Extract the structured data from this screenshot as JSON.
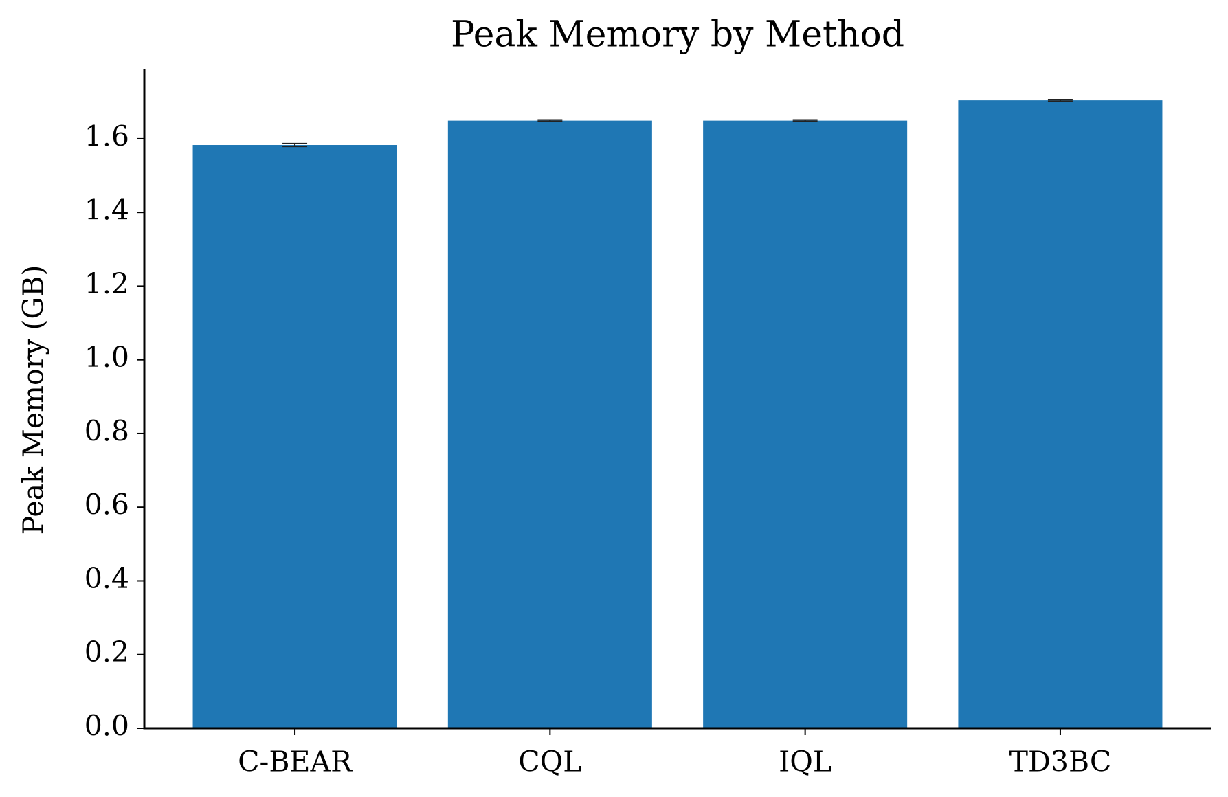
{
  "chart_data": {
    "type": "bar",
    "title": "Peak Memory by Method",
    "y_label": "Peak Memory (GB)",
    "categories": [
      "C-BEAR",
      "CQL",
      "IQL",
      "TD3BC"
    ],
    "values": [
      1.583,
      1.649,
      1.649,
      1.704
    ],
    "errors": [
      0.004,
      0.002,
      0.002,
      0.002
    ],
    "color": "#1f77b4",
    "ylim": [
      0,
      1.79
    ],
    "yticks": [
      {
        "value": 0,
        "label": "0.0"
      },
      0.2,
      0.4,
      0.6,
      0.8,
      {
        "value": 1,
        "label": "1.0"
      },
      1.2,
      1.4,
      1.6
    ],
    "grid": false
  }
}
